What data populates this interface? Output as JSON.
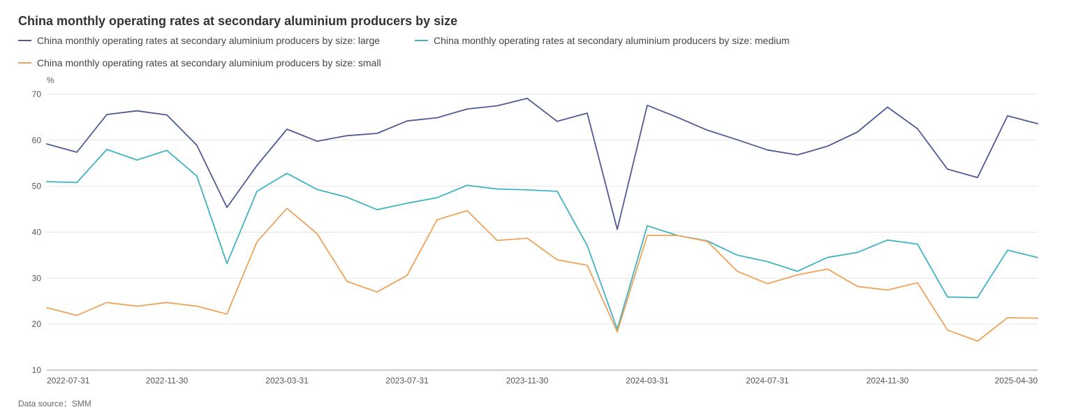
{
  "chart_data": {
    "type": "line",
    "title": "China monthly operating rates at secondary aluminium producers by size",
    "ylabel": "%",
    "ylim": [
      10,
      70
    ],
    "yticks": [
      10,
      20,
      30,
      40,
      50,
      60,
      70
    ],
    "grid": true,
    "legend_position": "top-left",
    "x": [
      "2022-07-31",
      "2022-08-31",
      "2022-09-30",
      "2022-10-31",
      "2022-11-30",
      "2022-12-31",
      "2023-01-31",
      "2023-02-28",
      "2023-03-31",
      "2023-04-30",
      "2023-05-31",
      "2023-06-30",
      "2023-07-31",
      "2023-08-31",
      "2023-09-30",
      "2023-10-31",
      "2023-11-30",
      "2023-12-31",
      "2024-01-31",
      "2024-02-29",
      "2024-03-31",
      "2024-04-30",
      "2024-05-31",
      "2024-06-30",
      "2024-07-31",
      "2024-08-31",
      "2024-09-30",
      "2024-10-31",
      "2024-11-30",
      "2024-12-31",
      "2025-01-31",
      "2025-02-28",
      "2025-03-31",
      "2025-04-30"
    ],
    "xticklabels": [
      "2022-07-31",
      "2022-11-30",
      "2023-03-31",
      "2023-07-31",
      "2023-11-30",
      "2024-03-31",
      "2024-07-31",
      "2024-11-30",
      "2025-04-30"
    ],
    "series": [
      {
        "name": "China monthly operating rates at secondary aluminium producers by size: large",
        "color": "#4e5a96",
        "values": [
          59.2,
          57.4,
          65.6,
          66.4,
          65.5,
          58.9,
          45.4,
          54.5,
          62.4,
          59.8,
          61.0,
          61.5,
          64.2,
          64.9,
          66.8,
          67.5,
          69.1,
          64.1,
          65.9,
          40.6,
          67.6,
          65.0,
          62.2,
          60.1,
          57.9,
          56.8,
          58.7,
          61.8,
          67.2,
          62.5,
          53.7,
          51.9,
          65.3,
          63.6
        ]
      },
      {
        "name": "China monthly operating rates at secondary aluminium producers by size: medium",
        "color": "#3fb2c4",
        "values": [
          51.0,
          50.8,
          58.0,
          55.7,
          57.8,
          52.2,
          33.2,
          48.9,
          52.8,
          49.3,
          47.6,
          44.9,
          46.3,
          47.5,
          50.2,
          49.4,
          49.2,
          48.9,
          37.1,
          18.9,
          41.4,
          39.3,
          38.1,
          35.0,
          33.6,
          31.5,
          34.5,
          35.6,
          38.3,
          37.4,
          25.9,
          25.8,
          36.1,
          34.5
        ]
      },
      {
        "name": "China monthly operating rates at secondary aluminium producers by size: small",
        "color": "#eea35a",
        "values": [
          23.6,
          21.9,
          24.7,
          23.9,
          24.7,
          23.9,
          22.2,
          37.9,
          45.2,
          39.7,
          29.3,
          27.0,
          30.6,
          42.7,
          44.7,
          38.2,
          38.7,
          34.0,
          32.8,
          18.3,
          39.3,
          39.3,
          38.0,
          31.5,
          28.8,
          30.7,
          32.0,
          28.2,
          27.4,
          29.0,
          18.7,
          16.3,
          21.4,
          21.3
        ]
      }
    ]
  },
  "footer": {
    "source": "Data source：SMM"
  }
}
